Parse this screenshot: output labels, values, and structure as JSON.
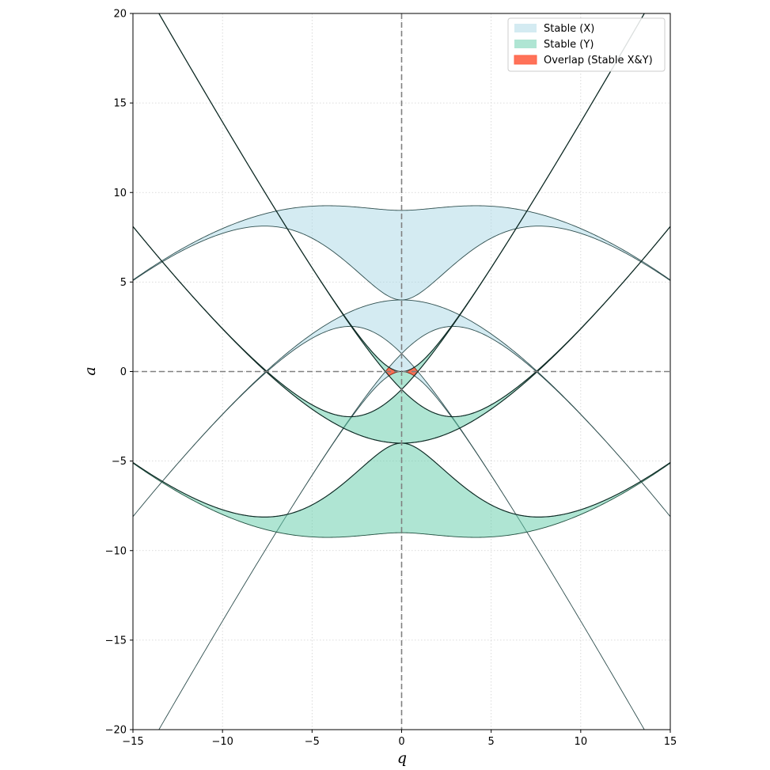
{
  "chart_data": {
    "type": "area",
    "title": "",
    "xlabel": "q",
    "ylabel": "a",
    "xlim": [
      -15,
      15
    ],
    "ylim": [
      -20,
      20
    ],
    "xticks": [
      -15,
      -10,
      -5,
      0,
      5,
      10,
      15
    ],
    "yticks": [
      -20,
      -15,
      -10,
      -5,
      0,
      5,
      10,
      15,
      20
    ],
    "xtick_labels": [
      "−15",
      "−10",
      "−5",
      "0",
      "5",
      "10",
      "15"
    ],
    "ytick_labels": [
      "−20",
      "−15",
      "−10",
      "−5",
      "0",
      "5",
      "10",
      "15",
      "20"
    ],
    "grid": true,
    "grid_style": "dotted",
    "reference_lines": {
      "x": 0,
      "y": 0,
      "style": "dashed"
    },
    "legend_position": "top-right",
    "legend": [
      {
        "label": "Stable (X)",
        "color": "#add8e6"
      },
      {
        "label": "Stable (Y)",
        "color": "#66cdaa"
      },
      {
        "label": "Overlap (Stable X&Y)",
        "color": "#ff6347"
      }
    ],
    "colors": {
      "stable_x_fill": "#add8e6",
      "stable_y_fill": "#66cdaa",
      "overlap_fill": "#ff6347",
      "band_edge_x": "#2f4f4f",
      "band_edge_y": "#1f4f3f",
      "characteristic_curve": "#0f2a25",
      "reference_line": "#808080"
    },
    "series": [
      {
        "name": "Stable (X)",
        "bands": [
          [
            0,
            1
          ],
          [
            2,
            3
          ],
          [
            4,
            5
          ]
        ]
      },
      {
        "name": "Stable (Y)",
        "bands": [
          [
            0,
            1
          ],
          [
            2,
            3
          ],
          [
            4,
            5
          ]
        ]
      },
      {
        "name": "Overlap (Stable X&Y)",
        "regions": [
          {
            "q": [
              -0.9,
              0.9
            ],
            "a": [
              -0.2,
              0.2
            ]
          }
        ]
      }
    ],
    "characteristic_curves": [
      "a0",
      "b1",
      "a1",
      "b2",
      "a2"
    ]
  }
}
